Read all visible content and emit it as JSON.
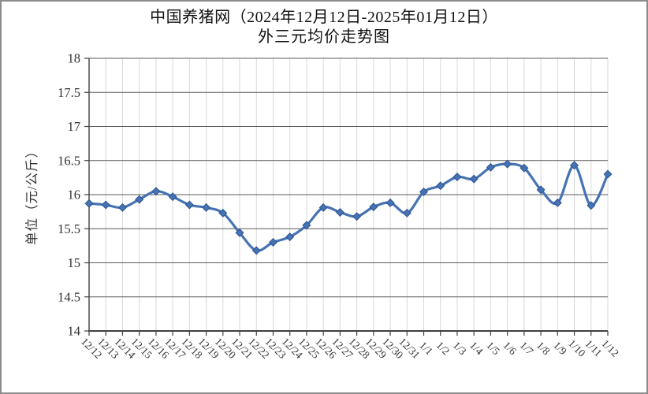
{
  "title": {
    "line1": "中国养猪网（2024年12月12日-2025年01月12日）",
    "line2": "外三元均价走势图"
  },
  "chart_data": {
    "type": "line",
    "smoothed": true,
    "title": "中国养猪网（2024年12月12日-2025年01月12日）外三元均价走势图",
    "ylabel": "单位（元/公斤）",
    "xlabel": "",
    "ylim": [
      14,
      18
    ],
    "y_tick_step": 0.5,
    "y_tick_labels": [
      "18",
      "17.5",
      "17",
      "16.5",
      "16",
      "15.5",
      "15",
      "14.5",
      "14"
    ],
    "grid": {
      "horizontal": true,
      "vertical": true
    },
    "legend": "none",
    "categories": [
      "12/12",
      "12/13",
      "12/14",
      "12/15",
      "12/16",
      "12/17",
      "12/18",
      "12/19",
      "12/20",
      "12/21",
      "12/22",
      "12/23",
      "12/24",
      "12/25",
      "12/26",
      "12/27",
      "12/28",
      "12/29",
      "12/30",
      "12/31",
      "1/1",
      "1/2",
      "1/3",
      "1/4",
      "1/5",
      "1/6",
      "1/7",
      "1/8",
      "1/9",
      "1/10",
      "1/11",
      "1/12"
    ],
    "series": [
      {
        "name": "外三元均价",
        "marker": "diamond",
        "values": [
          15.87,
          15.85,
          15.81,
          15.93,
          16.05,
          15.97,
          15.85,
          15.81,
          15.73,
          15.44,
          15.18,
          15.3,
          15.38,
          15.55,
          15.81,
          15.74,
          15.68,
          15.82,
          15.88,
          15.73,
          16.04,
          16.13,
          16.26,
          16.23,
          16.4,
          16.45,
          16.39,
          16.07,
          15.88,
          16.43,
          15.84,
          16.3
        ]
      }
    ],
    "colors": {
      "line": "#4673b3",
      "marker_fill": "#4673b3",
      "marker_edge": "#2e5492",
      "h_grid": "#595959",
      "v_grid": "#d9d9d9",
      "axis": "#404040",
      "tick_text": "#333333",
      "title_text": "#111111",
      "background": "#ffffff",
      "frame_border": "#8c8c8c"
    }
  }
}
